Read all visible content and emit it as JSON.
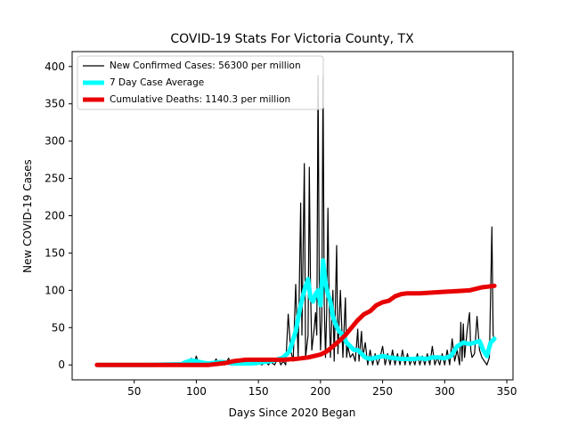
{
  "chart_data": {
    "type": "line",
    "title": "COVID-19 Stats For Victoria County, TX",
    "xlabel": "Days Since 2020 Began",
    "ylabel": "New COVID-19 Cases",
    "xlim": [
      0,
      355
    ],
    "ylim": [
      -20,
      420
    ],
    "x_ticks": [
      50,
      100,
      150,
      200,
      250,
      300,
      350
    ],
    "y_ticks": [
      0,
      50,
      100,
      150,
      200,
      250,
      300,
      350,
      400
    ],
    "grid": false,
    "legend_position": "top-left",
    "series": [
      {
        "name": "New Confirmed Cases: 56300 per million",
        "color": "#000000",
        "points": [
          [
            20,
            0
          ],
          [
            60,
            0
          ],
          [
            88,
            0
          ],
          [
            90,
            5
          ],
          [
            93,
            0
          ],
          [
            96,
            9
          ],
          [
            98,
            0
          ],
          [
            100,
            12
          ],
          [
            102,
            0
          ],
          [
            105,
            3
          ],
          [
            108,
            0
          ],
          [
            110,
            4
          ],
          [
            113,
            0
          ],
          [
            116,
            8
          ],
          [
            118,
            0
          ],
          [
            120,
            2
          ],
          [
            123,
            0
          ],
          [
            126,
            9
          ],
          [
            128,
            0
          ],
          [
            130,
            3
          ],
          [
            133,
            0
          ],
          [
            136,
            7
          ],
          [
            138,
            0
          ],
          [
            140,
            2
          ],
          [
            143,
            0
          ],
          [
            146,
            3
          ],
          [
            148,
            0
          ],
          [
            150,
            2
          ],
          [
            153,
            0
          ],
          [
            156,
            5
          ],
          [
            158,
            0
          ],
          [
            160,
            4
          ],
          [
            163,
            0
          ],
          [
            166,
            10
          ],
          [
            168,
            0
          ],
          [
            170,
            5
          ],
          [
            172,
            0
          ],
          [
            174,
            68
          ],
          [
            176,
            20
          ],
          [
            178,
            5
          ],
          [
            180,
            108
          ],
          [
            182,
            10
          ],
          [
            184,
            217
          ],
          [
            185,
            40
          ],
          [
            187,
            270
          ],
          [
            188,
            10
          ],
          [
            190,
            40
          ],
          [
            191,
            265
          ],
          [
            192,
            100
          ],
          [
            193,
            20
          ],
          [
            195,
            50
          ],
          [
            196,
            70
          ],
          [
            197,
            40
          ],
          [
            198,
            388
          ],
          [
            199,
            100
          ],
          [
            200,
            20
          ],
          [
            201,
            60
          ],
          [
            202,
            388
          ],
          [
            203,
            80
          ],
          [
            204,
            10
          ],
          [
            205,
            70
          ],
          [
            206,
            210
          ],
          [
            207,
            80
          ],
          [
            208,
            10
          ],
          [
            210,
            100
          ],
          [
            211,
            5
          ],
          [
            213,
            160
          ],
          [
            214,
            15
          ],
          [
            216,
            100
          ],
          [
            218,
            10
          ],
          [
            220,
            90
          ],
          [
            221,
            10
          ],
          [
            222,
            25
          ],
          [
            224,
            10
          ],
          [
            226,
            15
          ],
          [
            228,
            5
          ],
          [
            230,
            48
          ],
          [
            231,
            5
          ],
          [
            233,
            45
          ],
          [
            234,
            10
          ],
          [
            236,
            30
          ],
          [
            238,
            0
          ],
          [
            240,
            20
          ],
          [
            242,
            0
          ],
          [
            244,
            15
          ],
          [
            246,
            0
          ],
          [
            248,
            10
          ],
          [
            250,
            25
          ],
          [
            252,
            0
          ],
          [
            254,
            15
          ],
          [
            256,
            0
          ],
          [
            258,
            20
          ],
          [
            260,
            0
          ],
          [
            262,
            15
          ],
          [
            264,
            0
          ],
          [
            266,
            20
          ],
          [
            268,
            0
          ],
          [
            270,
            15
          ],
          [
            272,
            0
          ],
          [
            274,
            10
          ],
          [
            276,
            0
          ],
          [
            278,
            15
          ],
          [
            280,
            0
          ],
          [
            282,
            12
          ],
          [
            284,
            0
          ],
          [
            286,
            15
          ],
          [
            288,
            0
          ],
          [
            290,
            25
          ],
          [
            292,
            0
          ],
          [
            294,
            10
          ],
          [
            296,
            0
          ],
          [
            298,
            15
          ],
          [
            300,
            0
          ],
          [
            302,
            20
          ],
          [
            304,
            0
          ],
          [
            306,
            35
          ],
          [
            308,
            5
          ],
          [
            310,
            20
          ],
          [
            312,
            0
          ],
          [
            313,
            57
          ],
          [
            314,
            5
          ],
          [
            315,
            55
          ],
          [
            316,
            10
          ],
          [
            318,
            45
          ],
          [
            320,
            70
          ],
          [
            321,
            20
          ],
          [
            322,
            10
          ],
          [
            324,
            15
          ],
          [
            326,
            65
          ],
          [
            328,
            20
          ],
          [
            330,
            10
          ],
          [
            332,
            5
          ],
          [
            334,
            0
          ],
          [
            336,
            10
          ],
          [
            338,
            185
          ],
          [
            339,
            40
          ],
          [
            340,
            35
          ]
        ]
      },
      {
        "name": "7 Day Case Average",
        "color": "#00ffff",
        "points": [
          [
            20,
            0
          ],
          [
            60,
            0
          ],
          [
            88,
            1
          ],
          [
            92,
            4
          ],
          [
            96,
            6
          ],
          [
            100,
            5
          ],
          [
            105,
            3
          ],
          [
            110,
            2
          ],
          [
            115,
            3
          ],
          [
            120,
            4
          ],
          [
            125,
            3
          ],
          [
            130,
            2
          ],
          [
            135,
            2
          ],
          [
            140,
            2
          ],
          [
            145,
            2
          ],
          [
            150,
            3
          ],
          [
            155,
            4
          ],
          [
            160,
            5
          ],
          [
            165,
            7
          ],
          [
            170,
            10
          ],
          [
            175,
            18
          ],
          [
            180,
            45
          ],
          [
            184,
            80
          ],
          [
            187,
            100
          ],
          [
            190,
            115
          ],
          [
            192,
            90
          ],
          [
            194,
            85
          ],
          [
            196,
            95
          ],
          [
            198,
            100
          ],
          [
            200,
            80
          ],
          [
            202,
            140
          ],
          [
            204,
            110
          ],
          [
            206,
            95
          ],
          [
            208,
            85
          ],
          [
            210,
            65
          ],
          [
            212,
            55
          ],
          [
            215,
            45
          ],
          [
            218,
            40
          ],
          [
            221,
            30
          ],
          [
            224,
            25
          ],
          [
            227,
            20
          ],
          [
            230,
            20
          ],
          [
            233,
            15
          ],
          [
            236,
            10
          ],
          [
            240,
            8
          ],
          [
            245,
            10
          ],
          [
            250,
            12
          ],
          [
            255,
            10
          ],
          [
            260,
            9
          ],
          [
            265,
            8
          ],
          [
            270,
            8
          ],
          [
            275,
            8
          ],
          [
            280,
            9
          ],
          [
            285,
            8
          ],
          [
            290,
            10
          ],
          [
            295,
            10
          ],
          [
            300,
            9
          ],
          [
            305,
            12
          ],
          [
            310,
            25
          ],
          [
            315,
            30
          ],
          [
            320,
            28
          ],
          [
            324,
            30
          ],
          [
            328,
            32
          ],
          [
            331,
            20
          ],
          [
            334,
            12
          ],
          [
            337,
            30
          ],
          [
            340,
            35
          ]
        ]
      },
      {
        "name": "Cumulative Deaths: 1140.3 per million",
        "color": "#e80000",
        "points": [
          [
            20,
            0
          ],
          [
            100,
            0
          ],
          [
            110,
            0
          ],
          [
            120,
            2
          ],
          [
            125,
            3
          ],
          [
            130,
            5
          ],
          [
            135,
            6
          ],
          [
            140,
            7
          ],
          [
            150,
            7
          ],
          [
            160,
            7
          ],
          [
            170,
            7
          ],
          [
            180,
            8
          ],
          [
            185,
            9
          ],
          [
            190,
            10
          ],
          [
            195,
            12
          ],
          [
            200,
            14
          ],
          [
            205,
            18
          ],
          [
            210,
            25
          ],
          [
            215,
            32
          ],
          [
            220,
            40
          ],
          [
            225,
            50
          ],
          [
            230,
            60
          ],
          [
            235,
            68
          ],
          [
            240,
            72
          ],
          [
            245,
            80
          ],
          [
            250,
            84
          ],
          [
            255,
            86
          ],
          [
            260,
            92
          ],
          [
            265,
            95
          ],
          [
            270,
            96
          ],
          [
            280,
            96
          ],
          [
            290,
            97
          ],
          [
            300,
            98
          ],
          [
            310,
            99
          ],
          [
            320,
            100
          ],
          [
            325,
            102
          ],
          [
            330,
            104
          ],
          [
            335,
            105
          ],
          [
            340,
            106
          ]
        ]
      }
    ]
  }
}
